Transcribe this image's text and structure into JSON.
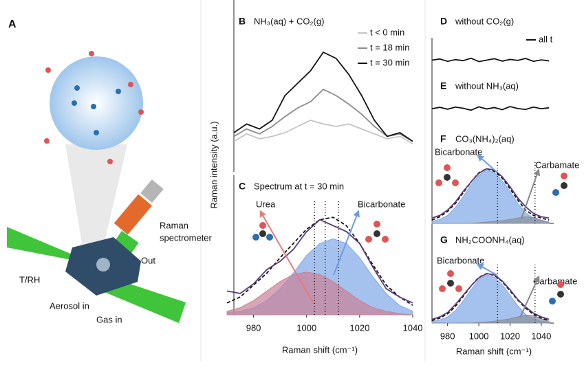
{
  "schematic": {
    "panel": "A",
    "labels": [
      "Raman",
      "spectrometer",
      "Out",
      "T/RH",
      "Aerosol in",
      "Gas in"
    ]
  },
  "chart_data": [
    {
      "type": "line",
      "panel": "B",
      "title": "NH₃(aq) + CO₂(g)",
      "x": [
        970,
        975,
        980,
        985,
        990,
        995,
        1000,
        1005,
        1010,
        1015,
        1020,
        1025,
        1030,
        1035,
        1040
      ],
      "xlim": [
        970,
        1040
      ],
      "ylim": [
        0,
        100
      ],
      "series": [
        {
          "name": "t < 0 min",
          "color": "#c4c4c4",
          "values": [
            8,
            14,
            10,
            12,
            15,
            20,
            25,
            22,
            20,
            22,
            18,
            14,
            10,
            12,
            6
          ]
        },
        {
          "name": "t = 18 min",
          "color": "#8a8a8a",
          "values": [
            12,
            18,
            14,
            20,
            28,
            35,
            40,
            50,
            45,
            38,
            30,
            20,
            12,
            14,
            8
          ]
        },
        {
          "name": "t = 30 min",
          "color": "#111111",
          "values": [
            15,
            22,
            18,
            25,
            45,
            55,
            65,
            80,
            75,
            62,
            45,
            25,
            12,
            15,
            8
          ]
        }
      ]
    },
    {
      "type": "line",
      "panel": "C",
      "title": "Spectrum at t = 30 min",
      "x_label": "Raman shift (cm⁻¹)",
      "y_label": "Raman intensity (a.u.)",
      "x": [
        970,
        975,
        980,
        985,
        990,
        995,
        1000,
        1005,
        1010,
        1015,
        1020,
        1025,
        1030,
        1035,
        1040
      ],
      "xlim": [
        970,
        1040
      ],
      "ylim": [
        0,
        100
      ],
      "xticks": [
        980,
        1000,
        1020,
        1040
      ],
      "series": [
        {
          "color": "#7fa8e8",
          "style": "area",
          "values": [
            2,
            3,
            6,
            12,
            22,
            35,
            50,
            60,
            64,
            60,
            48,
            32,
            18,
            8,
            3
          ]
        },
        {
          "color": "#c98095",
          "style": "area",
          "values": [
            3,
            6,
            12,
            20,
            28,
            34,
            36,
            34,
            28,
            20,
            12,
            6,
            3,
            1,
            0
          ]
        },
        {
          "color": "#111111",
          "style": "dashed",
          "values": [
            10,
            15,
            25,
            35,
            48,
            60,
            72,
            80,
            82,
            75,
            60,
            42,
            25,
            15,
            8
          ]
        },
        {
          "color": "#5a3a7a",
          "values": [
            20,
            18,
            26,
            38,
            45,
            55,
            70,
            80,
            75,
            70,
            60,
            40,
            22,
            15,
            10
          ]
        }
      ],
      "peaks": [
        1003,
        1007,
        1012
      ],
      "annotations": [
        "Urea",
        "Bicarbonate"
      ]
    },
    {
      "type": "line",
      "panel": "D",
      "title": "without CO₂(g)",
      "x": [
        970,
        975,
        980,
        985,
        990,
        995,
        1000,
        1005,
        1010,
        1015,
        1020,
        1025,
        1030,
        1035,
        1040,
        1045
      ],
      "xlim": [
        970,
        1048
      ],
      "ylim": [
        0,
        100
      ],
      "series": [
        {
          "name": "all t",
          "color": "#111111",
          "values": [
            50,
            55,
            45,
            52,
            48,
            58,
            44,
            50,
            56,
            46,
            53,
            49,
            57,
            45,
            51,
            47
          ]
        }
      ]
    },
    {
      "type": "line",
      "panel": "E",
      "title": "without NH₃(aq)",
      "x": [
        970,
        975,
        980,
        985,
        990,
        995,
        1000,
        1005,
        1010,
        1015,
        1020,
        1025,
        1030,
        1035,
        1040,
        1045
      ],
      "xlim": [
        970,
        1048
      ],
      "ylim": [
        0,
        100
      ],
      "series": [
        {
          "color": "#111111",
          "values": [
            48,
            54,
            46,
            55,
            50,
            42,
            56,
            47,
            53,
            44,
            57,
            49,
            45,
            55,
            48,
            52
          ]
        }
      ]
    },
    {
      "type": "line",
      "panel": "F",
      "title": "CO₃(NH₄)₂(aq)",
      "x": [
        970,
        975,
        980,
        985,
        990,
        995,
        1000,
        1005,
        1010,
        1015,
        1020,
        1025,
        1030,
        1035,
        1040,
        1045
      ],
      "xlim": [
        970,
        1048
      ],
      "ylim": [
        0,
        100
      ],
      "series": [
        {
          "color": "#7fa8e8",
          "style": "area",
          "values": [
            3,
            6,
            12,
            24,
            40,
            58,
            72,
            80,
            76,
            64,
            48,
            30,
            16,
            8,
            3,
            1
          ]
        },
        {
          "color": "#8a8f99",
          "style": "area",
          "values": [
            0,
            0,
            0,
            0,
            0,
            0,
            1,
            2,
            3,
            4,
            6,
            8,
            10,
            9,
            5,
            2
          ]
        },
        {
          "color": "#111111",
          "style": "dashed",
          "values": [
            5,
            10,
            18,
            30,
            46,
            62,
            76,
            82,
            78,
            68,
            52,
            35,
            20,
            12,
            8,
            5
          ]
        },
        {
          "color": "#5a3a7a",
          "values": [
            8,
            12,
            20,
            32,
            48,
            62,
            75,
            82,
            80,
            70,
            55,
            38,
            25,
            15,
            10,
            8
          ]
        }
      ],
      "peaks": [
        1012,
        1036
      ],
      "annotations": [
        "Bicarbonate",
        "Carbamate"
      ]
    },
    {
      "type": "line",
      "panel": "G",
      "title": "NH₂COONH₄(aq)",
      "x_label": "Raman shift (cm⁻¹)",
      "x": [
        970,
        975,
        980,
        985,
        990,
        995,
        1000,
        1005,
        1010,
        1015,
        1020,
        1025,
        1030,
        1035,
        1040,
        1045
      ],
      "xlim": [
        970,
        1048
      ],
      "ylim": [
        0,
        100
      ],
      "xticks": [
        980,
        1000,
        1020,
        1040
      ],
      "series": [
        {
          "color": "#7fa8e8",
          "style": "area",
          "values": [
            2,
            5,
            10,
            20,
            36,
            54,
            70,
            78,
            74,
            62,
            45,
            28,
            14,
            7,
            3,
            1
          ]
        },
        {
          "color": "#8a8f99",
          "style": "area",
          "values": [
            0,
            0,
            0,
            0,
            0,
            0,
            1,
            2,
            3,
            5,
            7,
            10,
            13,
            12,
            7,
            3
          ]
        },
        {
          "color": "#111111",
          "style": "dashed",
          "values": [
            4,
            8,
            15,
            27,
            43,
            60,
            74,
            80,
            77,
            67,
            52,
            37,
            24,
            14,
            8,
            4
          ]
        },
        {
          "color": "#5a3a7a",
          "values": [
            6,
            10,
            17,
            30,
            45,
            60,
            73,
            80,
            78,
            68,
            54,
            38,
            26,
            16,
            10,
            6
          ]
        }
      ],
      "peaks": [
        1012,
        1036
      ],
      "annotations": [
        "Bicarbonate",
        "Carbamate"
      ]
    }
  ]
}
